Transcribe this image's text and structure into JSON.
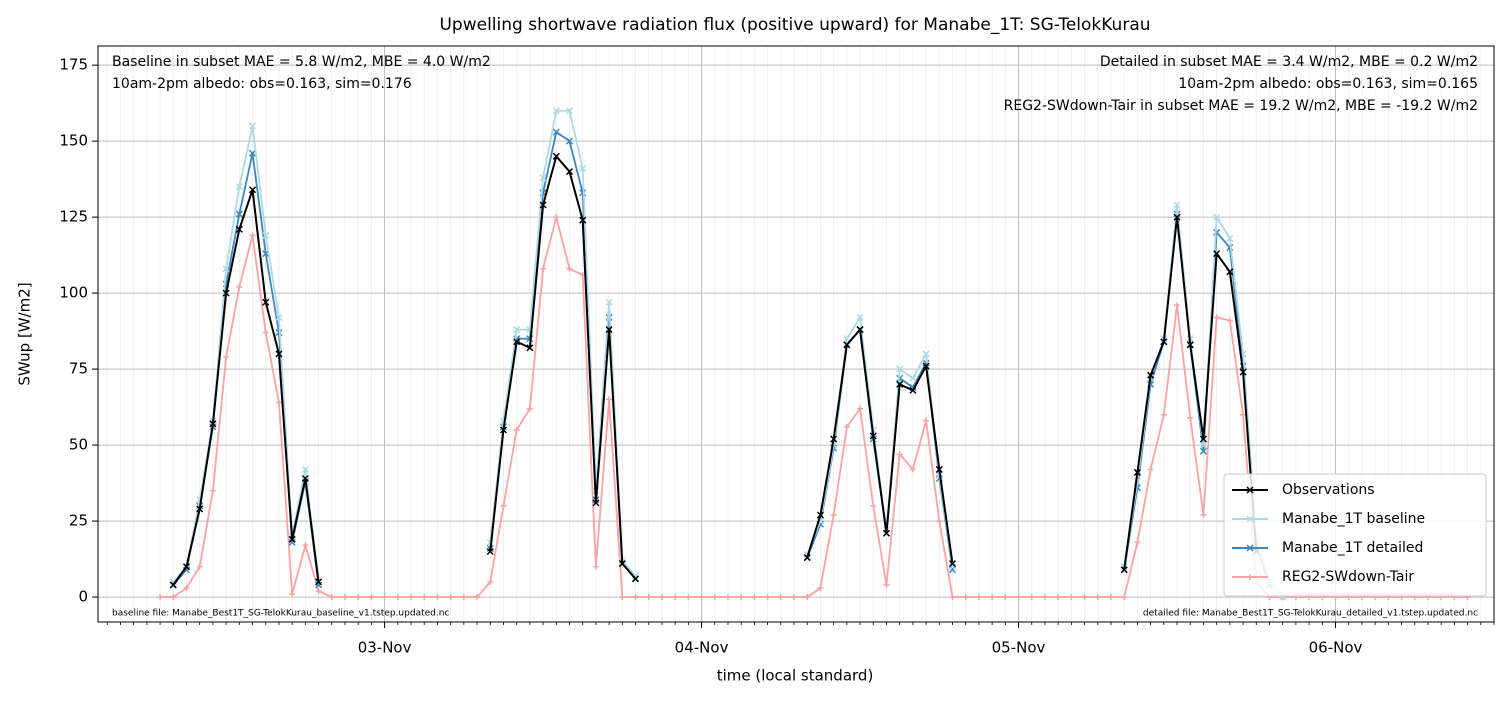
{
  "chart_data": {
    "type": "line",
    "title": "Upwelling shortwave radiation flux (positive upward) for Manabe_1T: SG-TelokKurau",
    "xlabel": "time (local standard)",
    "ylabel": "SWup [W/m2]",
    "xlim": [
      2.3,
      108
    ],
    "ylim": [
      -8.2,
      181.3
    ],
    "xticks": [
      {
        "value": 24,
        "label": "03-Nov"
      },
      {
        "value": 48,
        "label": "04-Nov"
      },
      {
        "value": 72,
        "label": "05-Nov"
      },
      {
        "value": 96,
        "label": "06-Nov"
      }
    ],
    "yticks": [
      0,
      25,
      50,
      75,
      100,
      125,
      150,
      175
    ],
    "grid": true,
    "legend": "lower right",
    "x": [
      7,
      8,
      9,
      10,
      11,
      12,
      13,
      14,
      15,
      16,
      17,
      18,
      19,
      20,
      21,
      22,
      23,
      24,
      25,
      26,
      27,
      28,
      29,
      30,
      31,
      32,
      33,
      34,
      35,
      36,
      37,
      38,
      39,
      40,
      41,
      42,
      43,
      44,
      45,
      46,
      47,
      48,
      49,
      50,
      51,
      52,
      53,
      54,
      55,
      56,
      57,
      58,
      59,
      60,
      61,
      62,
      63,
      64,
      65,
      66,
      67,
      68,
      69,
      70,
      71,
      72,
      73,
      74,
      75,
      76,
      77,
      78,
      79,
      80,
      81,
      82,
      83,
      84,
      85,
      86,
      87,
      88,
      89,
      90,
      91,
      92,
      93,
      94,
      95,
      96,
      97,
      98,
      99,
      100,
      101,
      102,
      103,
      104,
      105,
      106
    ],
    "series": [
      {
        "name": "Observations",
        "color": "#000000",
        "marker": "x",
        "values": [
          null,
          4,
          10,
          29,
          57,
          100,
          121,
          134,
          97,
          80,
          19,
          39,
          5,
          null,
          null,
          null,
          null,
          null,
          null,
          null,
          null,
          null,
          null,
          null,
          null,
          15,
          55,
          84,
          82,
          129,
          145,
          140,
          124,
          31,
          88,
          11,
          6,
          null,
          null,
          null,
          null,
          null,
          null,
          null,
          null,
          null,
          null,
          null,
          null,
          13,
          27,
          52,
          83,
          88,
          53,
          21,
          70,
          68,
          76,
          42,
          11,
          null,
          null,
          null,
          null,
          null,
          null,
          null,
          null,
          null,
          null,
          null,
          null,
          9,
          41,
          73,
          84,
          125,
          83,
          52,
          113,
          107,
          74,
          15,
          null,
          null,
          null,
          null,
          null,
          null,
          null,
          null,
          null,
          null,
          null,
          null,
          null,
          null,
          null,
          null
        ]
      },
      {
        "name": "Manabe_1T baseline",
        "color": "#add8e6",
        "marker": "x",
        "values": [
          null,
          5,
          10,
          32,
          58,
          108,
          135,
          155,
          119,
          92,
          20,
          42,
          5,
          null,
          null,
          null,
          null,
          null,
          null,
          null,
          null,
          null,
          null,
          null,
          null,
          18,
          58,
          88,
          88,
          138,
          160,
          160,
          141,
          35,
          97,
          12,
          7,
          null,
          null,
          null,
          null,
          null,
          null,
          null,
          null,
          null,
          null,
          null,
          null,
          14,
          25,
          50,
          85,
          92,
          55,
          22,
          75,
          72,
          80,
          40,
          10,
          null,
          null,
          null,
          null,
          null,
          null,
          null,
          null,
          null,
          null,
          null,
          null,
          10,
          38,
          72,
          85,
          129,
          85,
          50,
          125,
          118,
          80,
          20,
          5,
          0,
          null,
          null,
          null,
          null,
          null,
          null,
          null,
          null,
          null,
          null,
          null,
          null,
          null,
          null
        ]
      },
      {
        "name": "Manabe_1T detailed",
        "color": "#3a87c0",
        "marker": "x",
        "values": [
          null,
          4,
          9,
          30,
          56,
          103,
          126,
          146,
          113,
          87,
          18,
          38,
          4,
          null,
          null,
          null,
          null,
          null,
          null,
          null,
          null,
          null,
          null,
          null,
          null,
          16,
          56,
          85,
          85,
          133,
          153,
          150,
          133,
          32,
          92,
          11,
          6,
          null,
          null,
          null,
          null,
          null,
          null,
          null,
          null,
          null,
          null,
          null,
          null,
          13,
          24,
          49,
          83,
          88,
          52,
          21,
          72,
          69,
          77,
          39,
          9,
          null,
          null,
          null,
          null,
          null,
          null,
          null,
          null,
          null,
          null,
          null,
          null,
          9,
          36,
          70,
          84,
          126,
          83,
          48,
          120,
          115,
          76,
          17,
          4,
          null,
          null,
          null,
          null,
          null,
          null,
          null,
          null,
          null,
          null,
          null,
          null,
          null,
          null,
          null
        ]
      },
      {
        "name": "REG2-SWdown-Tair",
        "color": "#f9a3a3",
        "marker": "+",
        "values": [
          0,
          0,
          3,
          10,
          35,
          79,
          102,
          119,
          87,
          64,
          1,
          17,
          2,
          0,
          0,
          0,
          0,
          0,
          0,
          0,
          0,
          0,
          0,
          0,
          0,
          5,
          30,
          55,
          62,
          108,
          125,
          108,
          106,
          10,
          65,
          0,
          0,
          0,
          0,
          0,
          0,
          0,
          0,
          0,
          0,
          0,
          0,
          0,
          0,
          0,
          3,
          27,
          56,
          62,
          30,
          4,
          47,
          42,
          58,
          25,
          0,
          0,
          0,
          0,
          0,
          0,
          0,
          0,
          0,
          0,
          0,
          0,
          0,
          0,
          18,
          42,
          60,
          96,
          59,
          27,
          92,
          91,
          60,
          5,
          0,
          0,
          0,
          0,
          0,
          0,
          0,
          0,
          0,
          0,
          0,
          0,
          0,
          0,
          0,
          0
        ]
      }
    ],
    "annotations": [
      {
        "text": "Baseline in subset MAE = 5.8 W/m2, MBE = 4.0 W/m2",
        "color": "#add8e6",
        "corner": "top-left"
      },
      {
        "text": "10am-2pm albedo: obs=0.163, sim=0.176",
        "color": "#000000",
        "corner": "top-left"
      },
      {
        "text": "Detailed in subset MAE = 3.4 W/m2, MBE = 0.2 W/m2",
        "color": "#2c7bb6",
        "corner": "top-right"
      },
      {
        "text": "10am-2pm albedo: obs=0.163, sim=0.165",
        "color": "#000000",
        "corner": "top-right"
      },
      {
        "text": "REG2-SWdown-Tair in subset MAE = 19.2 W/m2, MBE = -19.2 W/m2",
        "color": "#ff0000",
        "corner": "top-right"
      },
      {
        "text": "baseline file: Manabe_Best1T_SG-TelokKurau_baseline_v1.tstep.updated.nc",
        "color": "#000000",
        "corner": "bottom-left"
      },
      {
        "text": "detailed file: Manabe_Best1T_SG-TelokKurau_detailed_v1.tstep.updated.nc",
        "color": "#000000",
        "corner": "bottom-right"
      }
    ]
  }
}
